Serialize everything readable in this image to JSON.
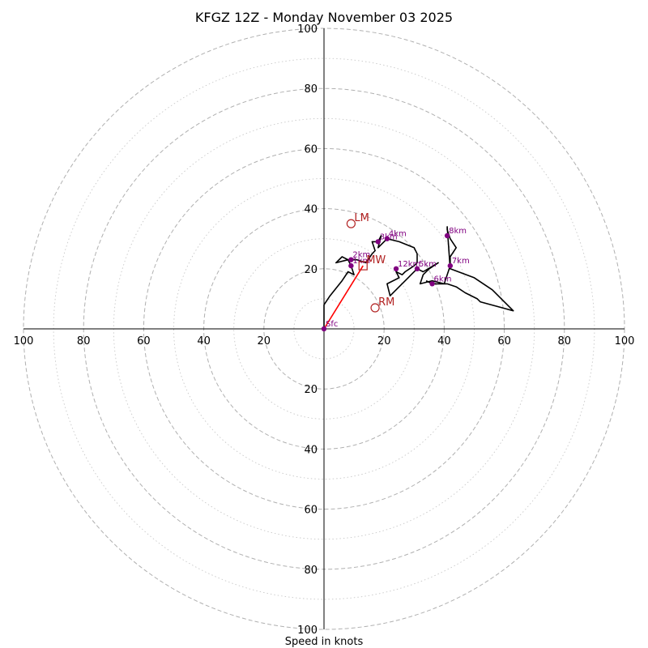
{
  "chart_data": {
    "type": "hodograph",
    "title": "KFGZ 12Z - Monday November 03 2025",
    "xlabel": "Speed in knots",
    "units": "knots",
    "max_ring": 100,
    "rings_major": [
      20,
      40,
      60,
      80,
      100
    ],
    "rings_minor": [
      10,
      30,
      50,
      70,
      90
    ],
    "axis_tick_labels": [
      "100",
      "80",
      "60",
      "40",
      "20",
      "20",
      "40",
      "60",
      "80",
      "100"
    ],
    "y_tick_labels_top": [
      "20",
      "40",
      "60",
      "80",
      "100"
    ],
    "y_tick_labels_bottom": [
      "20",
      "40",
      "60",
      "80",
      "100"
    ],
    "grid": true,
    "colors": {
      "trace": "#000000",
      "height_marker": "#800080",
      "storm_motion": "#b22222",
      "shear_vector": "#ff0000",
      "ring_major": "#b0b0b0",
      "ring_minor": "#c8c8c8"
    },
    "trace": [
      {
        "u": 0,
        "v": 0
      },
      {
        "u": 0,
        "v": 8
      },
      {
        "u": 2,
        "v": 11
      },
      {
        "u": 6,
        "v": 16
      },
      {
        "u": 8,
        "v": 19
      },
      {
        "u": 10,
        "v": 18
      },
      {
        "u": 9,
        "v": 21
      },
      {
        "u": 8,
        "v": 23
      },
      {
        "u": 6,
        "v": 24
      },
      {
        "u": 4,
        "v": 22
      },
      {
        "u": 8,
        "v": 23
      },
      {
        "u": 11,
        "v": 23
      },
      {
        "u": 14,
        "v": 22
      },
      {
        "u": 16,
        "v": 25
      },
      {
        "u": 17,
        "v": 26
      },
      {
        "u": 16,
        "v": 29
      },
      {
        "u": 18,
        "v": 29
      },
      {
        "u": 19,
        "v": 31
      },
      {
        "u": 18,
        "v": 27
      },
      {
        "u": 21,
        "v": 30
      },
      {
        "u": 25,
        "v": 29
      },
      {
        "u": 30,
        "v": 27
      },
      {
        "u": 31,
        "v": 25
      },
      {
        "u": 31,
        "v": 22
      },
      {
        "u": 30,
        "v": 21
      },
      {
        "u": 27,
        "v": 19
      },
      {
        "u": 26,
        "v": 18
      },
      {
        "u": 24,
        "v": 19
      },
      {
        "u": 25,
        "v": 17
      },
      {
        "u": 21,
        "v": 15
      },
      {
        "u": 22,
        "v": 11
      },
      {
        "u": 24,
        "v": 13
      },
      {
        "u": 28,
        "v": 17
      },
      {
        "u": 31,
        "v": 20
      },
      {
        "u": 33,
        "v": 19
      },
      {
        "u": 38,
        "v": 22
      },
      {
        "u": 35,
        "v": 20
      },
      {
        "u": 33,
        "v": 18
      },
      {
        "u": 32,
        "v": 15
      },
      {
        "u": 36,
        "v": 16
      },
      {
        "u": 40,
        "v": 15
      },
      {
        "u": 42,
        "v": 21
      },
      {
        "u": 42,
        "v": 24
      },
      {
        "u": 44,
        "v": 27
      },
      {
        "u": 42,
        "v": 30
      },
      {
        "u": 41,
        "v": 33
      },
      {
        "u": 41,
        "v": 34
      },
      {
        "u": 42,
        "v": 20
      },
      {
        "u": 50,
        "v": 17
      },
      {
        "u": 56,
        "v": 13
      },
      {
        "u": 63,
        "v": 6
      },
      {
        "u": 52,
        "v": 9
      },
      {
        "u": 51,
        "v": 10
      },
      {
        "u": 47,
        "v": 12
      },
      {
        "u": 44,
        "v": 14
      },
      {
        "u": 41,
        "v": 15
      },
      {
        "u": 36,
        "v": 15
      },
      {
        "u": 34,
        "v": 16
      }
    ],
    "height_markers": [
      {
        "label": "Sfc",
        "u": 0,
        "v": 0
      },
      {
        "label": "1km",
        "u": 9,
        "v": 21
      },
      {
        "label": "2km",
        "u": 9,
        "v": 23
      },
      {
        "label": "3km",
        "u": 18,
        "v": 29
      },
      {
        "label": "4km",
        "u": 21,
        "v": 30
      },
      {
        "label": "5km",
        "u": 31,
        "v": 20
      },
      {
        "label": "6km",
        "u": 36,
        "v": 15
      },
      {
        "label": "7km",
        "u": 42,
        "v": 21
      },
      {
        "label": "8km",
        "u": 41,
        "v": 31
      },
      {
        "label": "12km",
        "u": 24,
        "v": 20
      }
    ],
    "storm_motion": [
      {
        "label": "LM",
        "u": 9,
        "v": 35,
        "marker": "circle"
      },
      {
        "label": "RM",
        "u": 17,
        "v": 7,
        "marker": "circle"
      },
      {
        "label": "MW",
        "u": 13,
        "v": 21,
        "marker": "square"
      }
    ],
    "shear_vector": {
      "from_u": 0,
      "from_v": 0,
      "to_u": 13,
      "to_v": 21
    }
  }
}
